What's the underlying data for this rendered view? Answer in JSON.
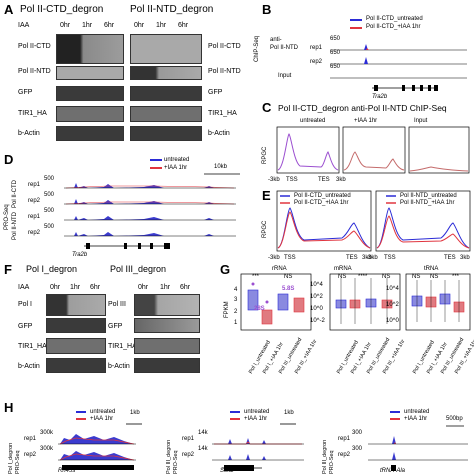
{
  "panelA": {
    "label": "A",
    "title_left": "Pol II-CTD_degron",
    "title_right": "Pol II-NTD_degron",
    "iaa": "IAA",
    "times": [
      "0hr",
      "1hr",
      "6hr"
    ],
    "rows": [
      "Pol II-CTD",
      "Pol II-NTD",
      "GFP",
      "TIR1_HA",
      "b-Actin"
    ]
  },
  "panelB": {
    "label": "B",
    "legend": [
      "Pol II-CTD_untreated",
      "Pol II-CTD_+IAA 1hr"
    ],
    "ylabel": "ChIP-Seq",
    "row_label": "anti-\nPol II-NTD",
    "reps": [
      "rep1",
      "rep2"
    ],
    "input": "Input",
    "scale": "650",
    "gene": "Tra2b"
  },
  "panelC": {
    "label": "C",
    "title": "Pol II-CTD_degron anti-Pol II-NTD ChIP-Seq",
    "facets": [
      "untreated",
      "+IAA 1hr",
      "Input"
    ],
    "ylabel": "RPGC",
    "ticks": [
      "-3kb",
      "TSS",
      "TES",
      "3kb"
    ]
  },
  "panelD": {
    "label": "D",
    "legend": [
      "untreated",
      "+IAA 1hr"
    ],
    "scalebar": "10kb",
    "ylabel": "PRO-Seq",
    "group1": "Pol II-CTD",
    "group2": "Pol II-NTD",
    "reps": [
      "rep1",
      "rep2",
      "rep1",
      "rep2"
    ],
    "scale": "500",
    "gene": "Tra2b"
  },
  "panelE": {
    "label": "E",
    "ylabel": "RPGC",
    "legend_left": [
      "Pol II-CTD_untreated",
      "Pol II-CTD_+IAA 1hr"
    ],
    "legend_right": [
      "Pol II-NTD_untreated",
      "Pol II-NTD_+IAA 1hr"
    ],
    "ticks": [
      "-3kb",
      "TSS",
      "TES",
      "3kb"
    ]
  },
  "panelF": {
    "label": "F",
    "title_left": "Pol I_degron",
    "title_right": "Pol III_degron",
    "iaa": "IAA",
    "times": [
      "0hr",
      "1hr",
      "6hr"
    ],
    "rows_left": [
      "Pol I",
      "GFP",
      "TIR1_HA",
      "b-Actin"
    ],
    "rows_right": [
      "Pol III",
      "GFP",
      "TIR1_HA",
      "b-Actin"
    ]
  },
  "panelG": {
    "label": "G",
    "ylabel": "FPKM",
    "facets": [
      "rRNA",
      "mRNA",
      "tRNA"
    ],
    "annot_58s": "5.8S",
    "annot_28s": "28S",
    "sig_rrna": [
      "***",
      "NS"
    ],
    "sig_mrna": [
      "NS",
      "****",
      "NS"
    ],
    "sig_trna": [
      "NS",
      "NS",
      "***"
    ],
    "yticks_rrna": [
      "4",
      "3",
      "2",
      "1"
    ],
    "yticks_mrna": [
      "10^4",
      "10^2",
      "10^0",
      "10^-2"
    ],
    "yticks_trna": [
      "10^4",
      "10^2",
      "10^0"
    ],
    "xcats": [
      "Pol I_untreated",
      "Pol I_+IAA 1hr",
      "Pol III_untreated",
      "Pol III_+IAA 1hr"
    ]
  },
  "panelH": {
    "label": "H",
    "legend": [
      "untreated",
      "+IAA 1hr"
    ],
    "tracks": [
      {
        "group": "Pol I_degron",
        "scale": "300k",
        "bar": "1kb",
        "gene": "Rn45s"
      },
      {
        "group": "Pol III_degron",
        "scale": "14k",
        "bar": "1kb",
        "gene": "Sox2"
      },
      {
        "group": "Pol III_degron",
        "scale": "300",
        "bar": "500bp",
        "gene": "tRNA-Ala"
      }
    ],
    "ylabel": "PRO-Seq",
    "reps": [
      "rep1",
      "rep2"
    ]
  },
  "colors": {
    "untreated": "#2b2bd6",
    "treated": "#e0353f",
    "purple": "#9b4fd0"
  }
}
